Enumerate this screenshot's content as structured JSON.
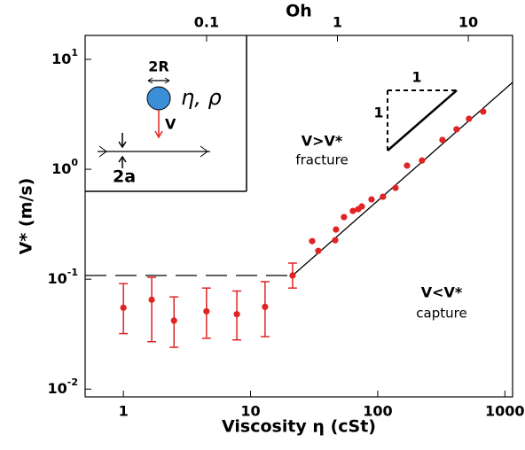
{
  "chart_data": {
    "type": "scatter",
    "x_label": "Viscosity η  (cSt)",
    "y_label": "V* (m/s)",
    "x2_label": "Oh",
    "log_x": true,
    "log_y": true,
    "xlim": [
      0.5,
      1150
    ],
    "ylim": [
      0.0085,
      16.5
    ],
    "x2lim": [
      0.0118,
      21.8
    ],
    "xticks": [
      1,
      10,
      100,
      1000
    ],
    "x2ticks": [
      0.1,
      1,
      10
    ],
    "yticks": [
      {
        "value": 0.01,
        "label": "10^-2"
      },
      {
        "value": 0.1,
        "label": "10^-1"
      },
      {
        "value": 1,
        "label": "10^0"
      },
      {
        "value": 10,
        "label": "10^1"
      }
    ],
    "color": "#e02424",
    "series": [
      {
        "name": "capture",
        "x": [
          1.0,
          1.67,
          2.5,
          4.5,
          7.8,
          13,
          21.4
        ],
        "values": [
          0.055,
          0.065,
          0.042,
          0.051,
          0.048,
          0.056,
          0.108
        ],
        "lower": [
          0.032,
          0.027,
          0.024,
          0.029,
          0.028,
          0.03,
          0.083
        ],
        "upper": [
          0.091,
          0.104,
          0.069,
          0.083,
          0.078,
          0.095,
          0.14
        ]
      },
      {
        "name": "fracture",
        "x": [
          30.5,
          34.1,
          46.3,
          47.0,
          54.3,
          63.8,
          70.3,
          75.0,
          89.4,
          110,
          138,
          170,
          223,
          323,
          417,
          522,
          675
        ],
        "values": [
          0.222,
          0.181,
          0.226,
          0.283,
          0.367,
          0.418,
          0.434,
          0.459,
          0.532,
          0.562,
          0.677,
          1.08,
          1.2,
          1.85,
          2.31,
          2.88,
          3.35
        ]
      }
    ],
    "threshold": {
      "x": [
        21.4,
        1150
      ],
      "values": [
        0.108,
        6.17
      ]
    },
    "plateau": {
      "x": [
        0.5,
        21.4
      ],
      "values": [
        0.108,
        0.108
      ]
    },
    "annotations": {
      "upper": "V>V*",
      "upper_sub": "fracture",
      "lower": "V<V*",
      "lower_sub": "capture",
      "slope_run": "1",
      "slope_rise": "1"
    },
    "inset": {
      "diameter": "2R",
      "props": "η, ρ",
      "velocity": "V",
      "gap": "2a"
    }
  }
}
